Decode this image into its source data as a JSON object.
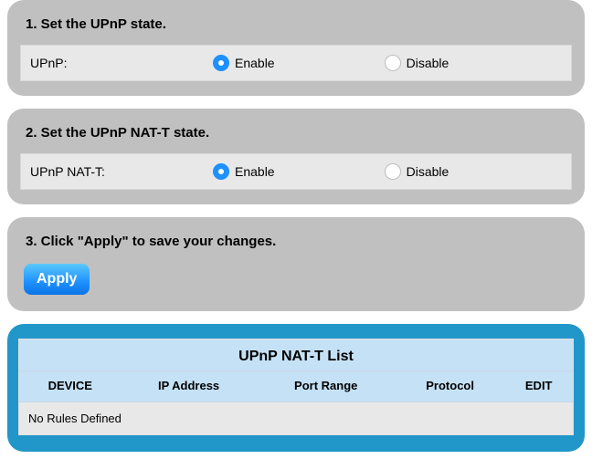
{
  "panels": {
    "upnp": {
      "title": "1. Set the UPnP state.",
      "label": "UPnP:",
      "options": {
        "enable": "Enable",
        "disable": "Disable"
      },
      "selected": "enable"
    },
    "natt": {
      "title": "2. Set the UPnP NAT-T state.",
      "label": "UPnP NAT-T:",
      "options": {
        "enable": "Enable",
        "disable": "Disable"
      },
      "selected": "enable"
    },
    "apply": {
      "title": "3. Click \"Apply\" to save your changes.",
      "button": "Apply"
    }
  },
  "table": {
    "title": "UPnP NAT-T List",
    "columns": [
      "DEVICE",
      "IP Address",
      "Port Range",
      "Protocol",
      "EDIT"
    ],
    "empty_text": "No Rules Defined"
  },
  "colors": {
    "panel_bg": "#c0c0c0",
    "row_bg": "#e8e8e8",
    "radio_selected": "#1e90ff",
    "blue_panel": "#2196c9",
    "table_bg": "#c5e1f5"
  }
}
